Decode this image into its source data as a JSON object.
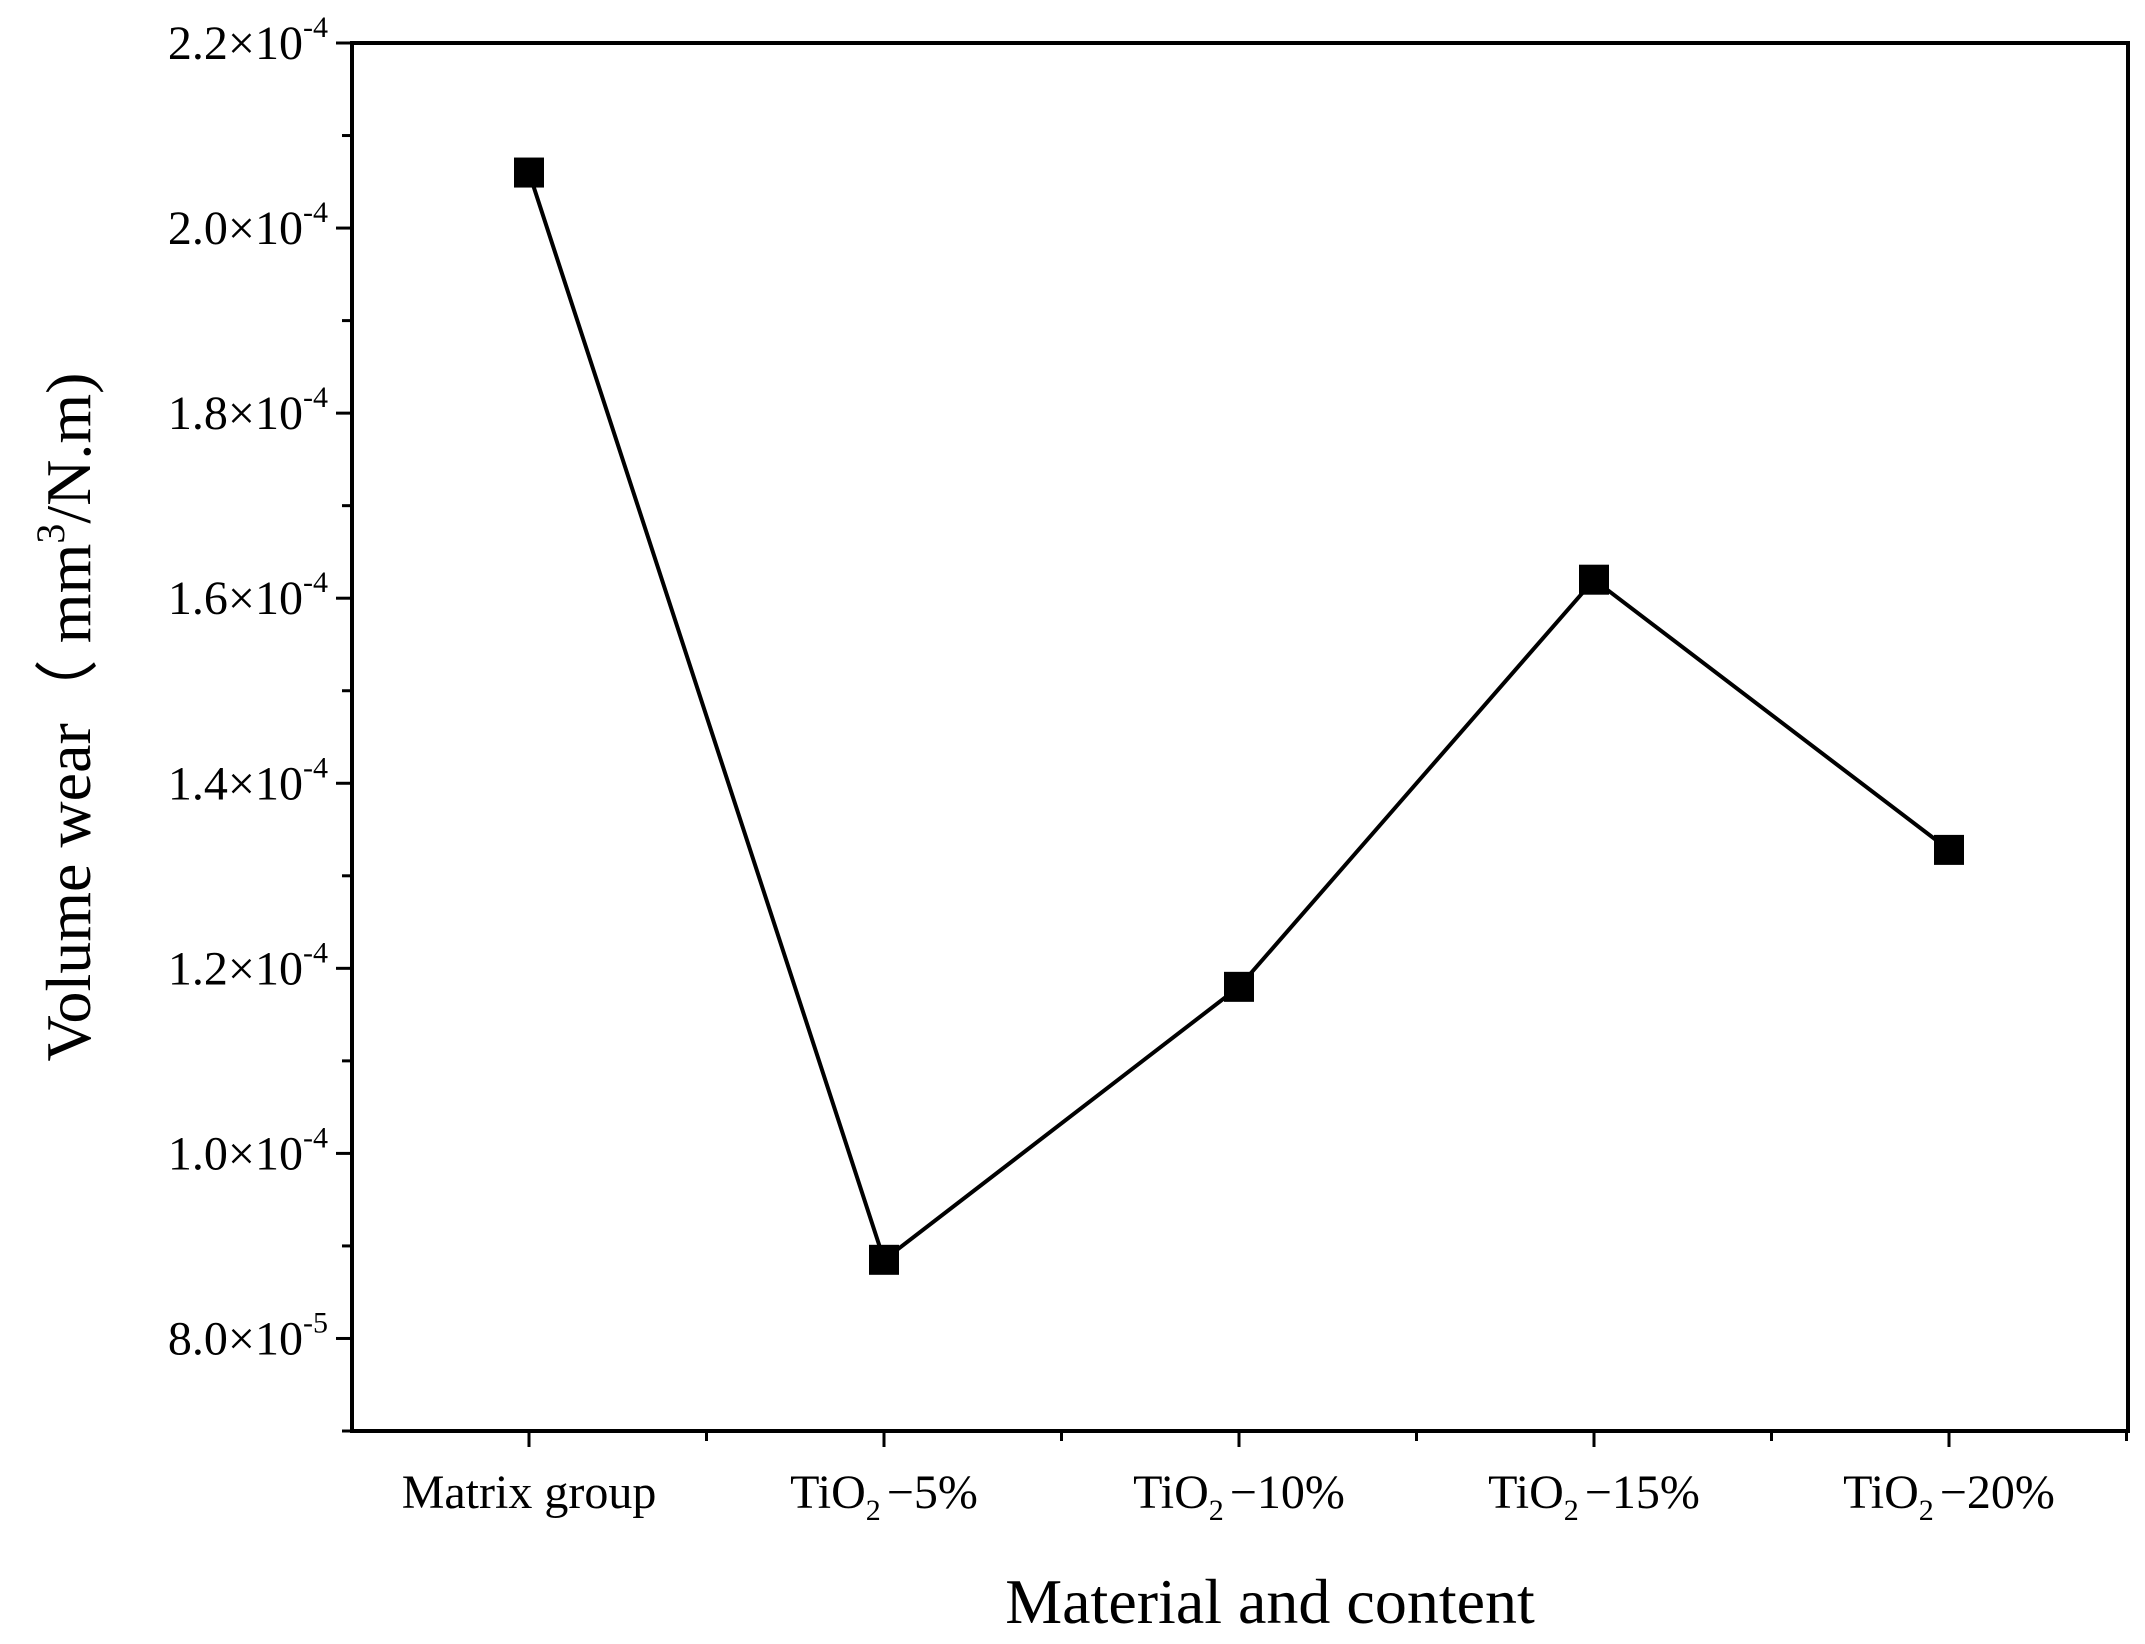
{
  "chart_data": {
    "type": "line",
    "title": "",
    "xlabel": "Material and content",
    "ylabel": {
      "prefix": "Volume wear（ mm",
      "superscript": "3",
      "suffix": "/N.m)"
    },
    "categories": [
      {
        "base": "Matrix group",
        "sub": "",
        "suffix": ""
      },
      {
        "base": "TiO",
        "sub": "2",
        "suffix": "−5%"
      },
      {
        "base": "TiO",
        "sub": "2",
        "suffix": "−10%"
      },
      {
        "base": "TiO",
        "sub": "2",
        "suffix": "−15%"
      },
      {
        "base": "TiO",
        "sub": "2",
        "suffix": "−20%"
      }
    ],
    "series": [
      {
        "name": "Volume wear",
        "color": "#000000",
        "marker": "square",
        "values": [
          0.000206,
          8.85e-05,
          0.000118,
          0.000162,
          0.0001328
        ]
      }
    ],
    "ylim": [
      7e-05,
      0.00022
    ],
    "yticks": [
      {
        "value": 8e-05,
        "mantissa": "8.0×10",
        "exponent": "-5"
      },
      {
        "value": 0.0001,
        "mantissa": "1.0×10",
        "exponent": "-4"
      },
      {
        "value": 0.00012,
        "mantissa": "1.2×10",
        "exponent": "-4"
      },
      {
        "value": 0.00014,
        "mantissa": "1.4×10",
        "exponent": "-4"
      },
      {
        "value": 0.00016,
        "mantissa": "1.6×10",
        "exponent": "-4"
      },
      {
        "value": 0.00018,
        "mantissa": "1.8×10",
        "exponent": "-4"
      },
      {
        "value": 0.0002,
        "mantissa": "2.0×10",
        "exponent": "-4"
      },
      {
        "value": 0.00022,
        "mantissa": "2.2×10",
        "exponent": "-4"
      }
    ],
    "grid": false,
    "legend": "none"
  }
}
